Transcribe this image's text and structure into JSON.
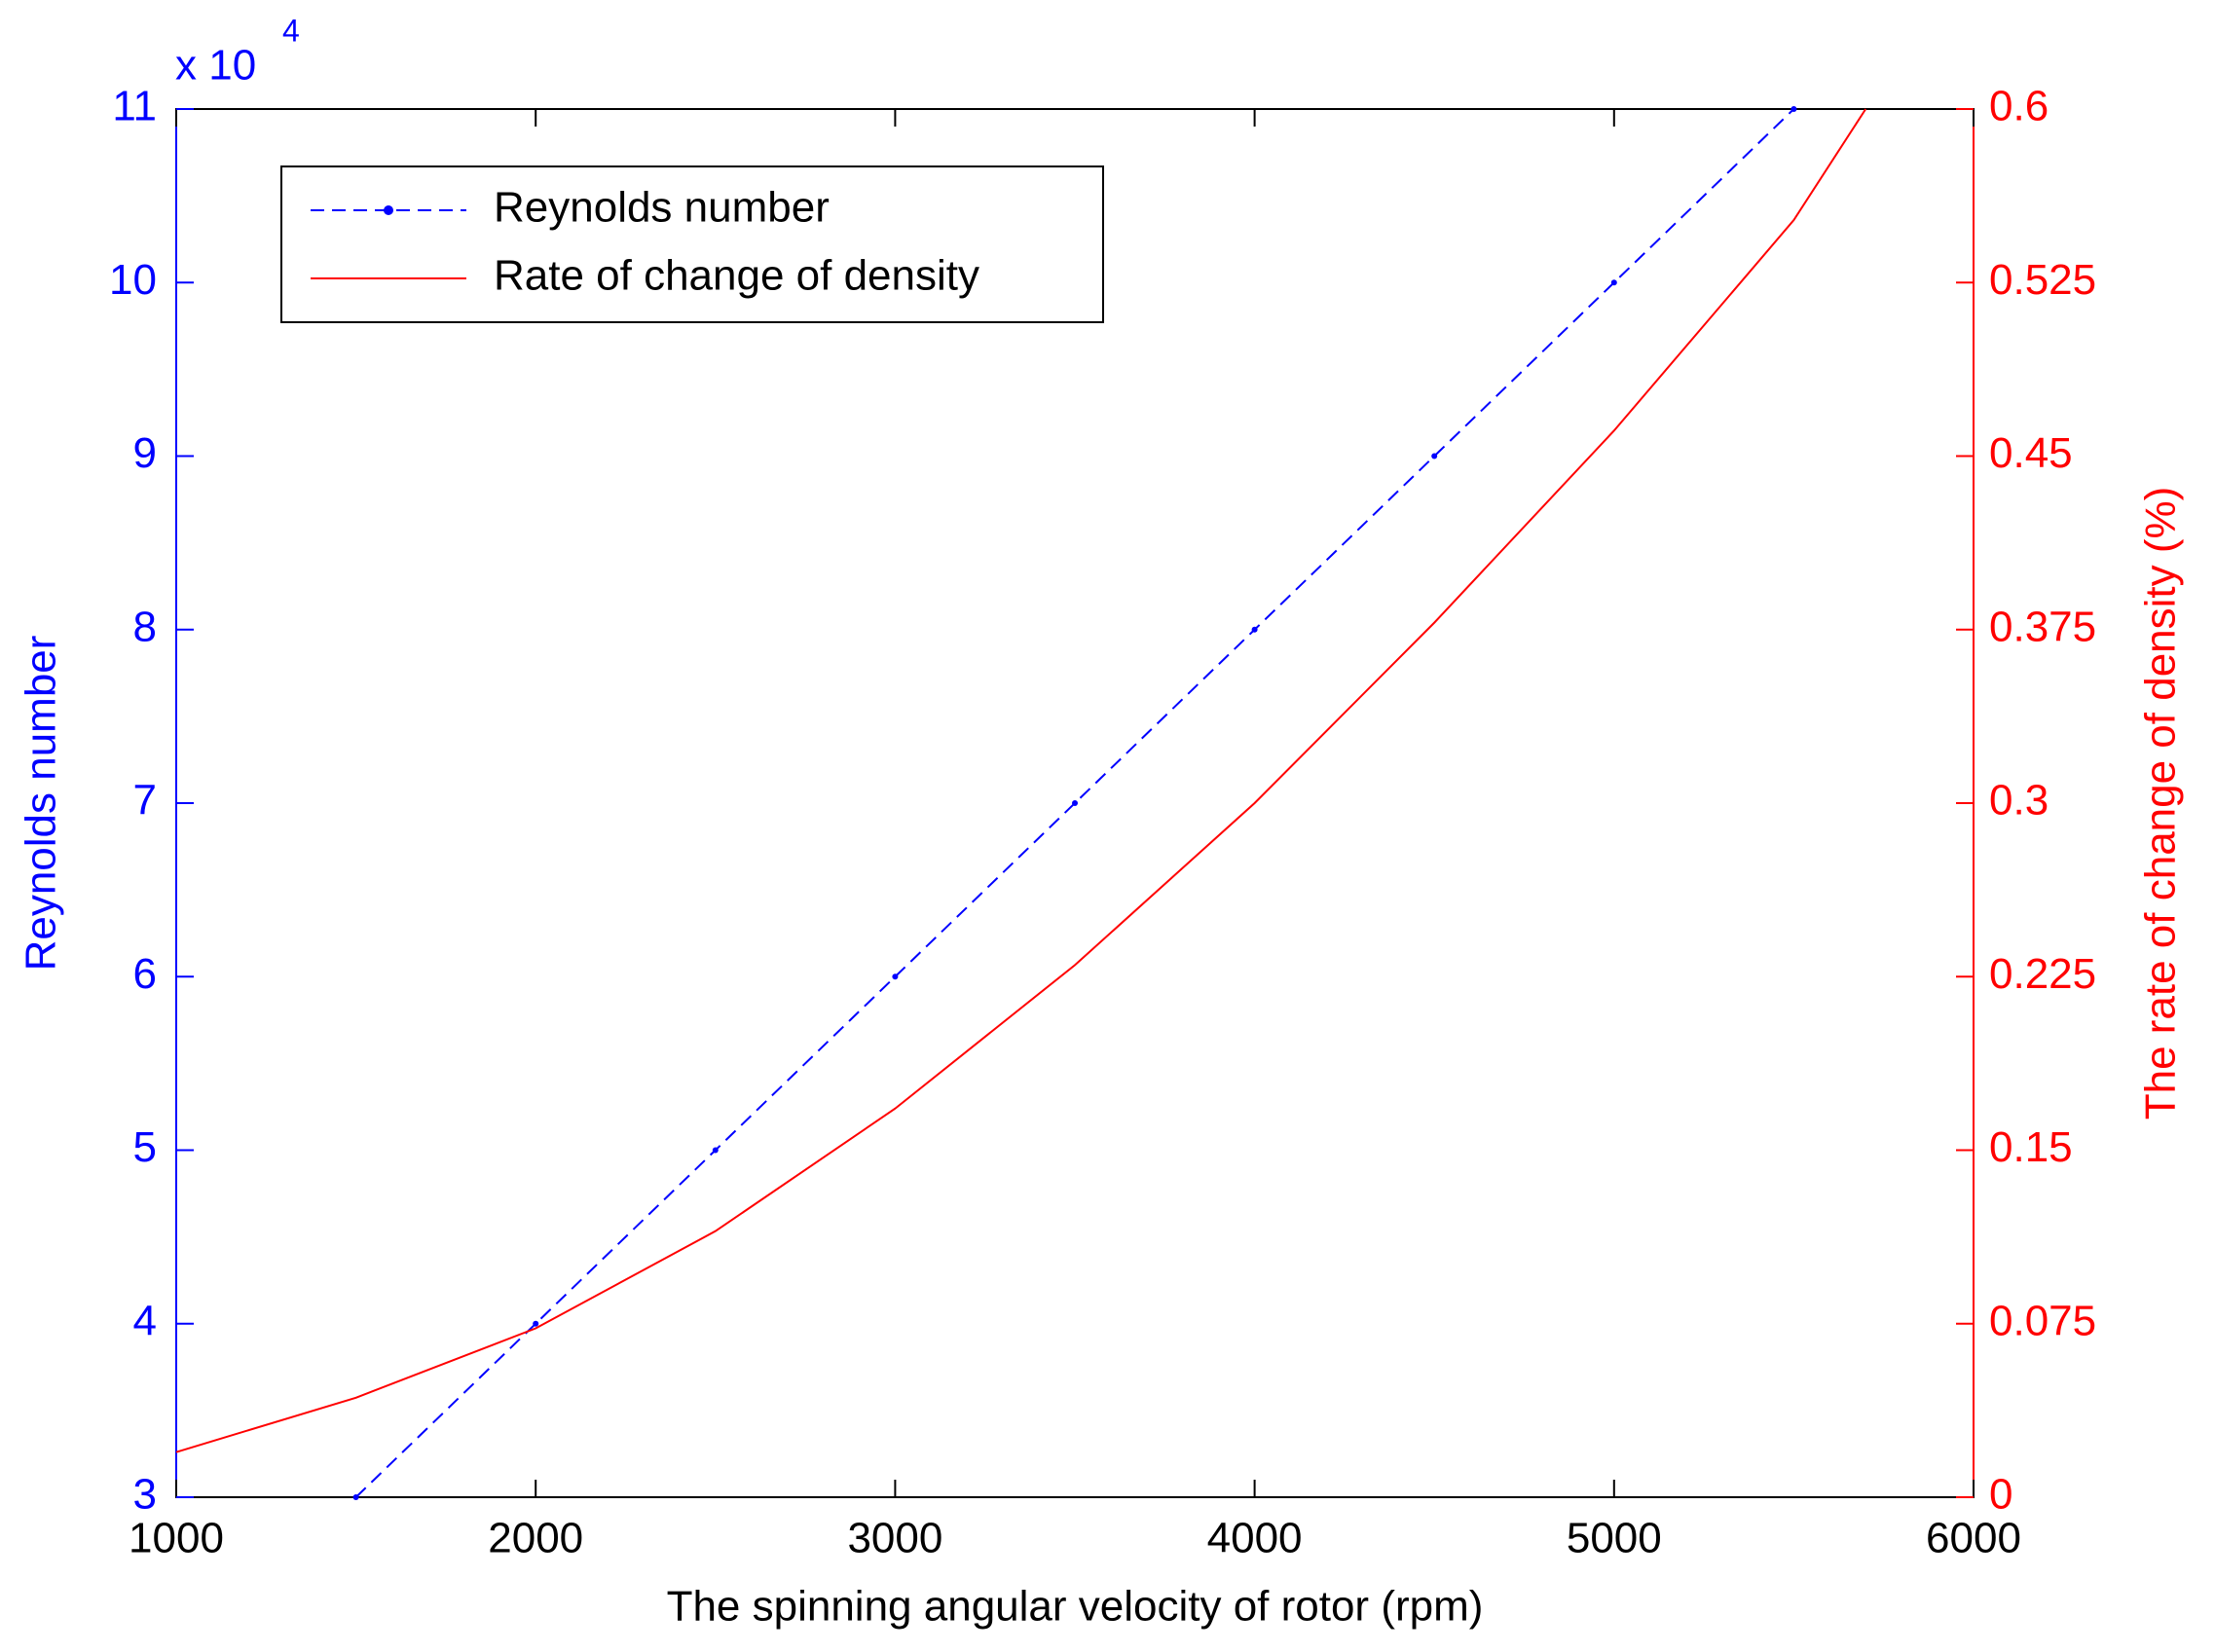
{
  "chart_data": {
    "type": "line",
    "x_label": "The spinning angular velocity of rotor (rpm)",
    "y_label": "Reynolds number",
    "y2_label": "The rate of change of density (%)",
    "y_multiplier": "x 10",
    "y_multiplier_exponent": "4",
    "xlim": [
      1000,
      6000
    ],
    "xticks": [
      1000,
      2000,
      3000,
      4000,
      5000,
      6000
    ],
    "ylim": [
      3,
      11
    ],
    "yticks": [
      3,
      4,
      5,
      6,
      7,
      8,
      9,
      10,
      11
    ],
    "y2lim": [
      0,
      0.6
    ],
    "y2ticks": [
      0,
      0.075,
      0.15,
      0.225,
      0.3,
      0.375,
      0.45,
      0.525,
      0.6
    ],
    "y_color": "#0000ff",
    "y2_color": "#ff0000",
    "legend": "top-left",
    "series": [
      {
        "name": "Reynolds number",
        "color": "#0000ff",
        "style": "dashed",
        "marker": "dot",
        "x": [
          1500,
          2000,
          2500,
          3000,
          3500,
          4000,
          4500,
          5000,
          5500
        ],
        "values": [
          3,
          4,
          5,
          6,
          7,
          8,
          9,
          10,
          11
        ]
      },
      {
        "name": "Rate of change of density",
        "color": "#ff0000",
        "style": "solid",
        "axis": "y2",
        "x": [
          1000,
          1500,
          2000,
          2500,
          3000,
          3500,
          4000,
          4500,
          5000,
          5500,
          5700
        ],
        "values": [
          0.0195,
          0.043,
          0.073,
          0.115,
          0.168,
          0.23,
          0.3,
          0.378,
          0.461,
          0.552,
          0.6
        ]
      }
    ]
  }
}
